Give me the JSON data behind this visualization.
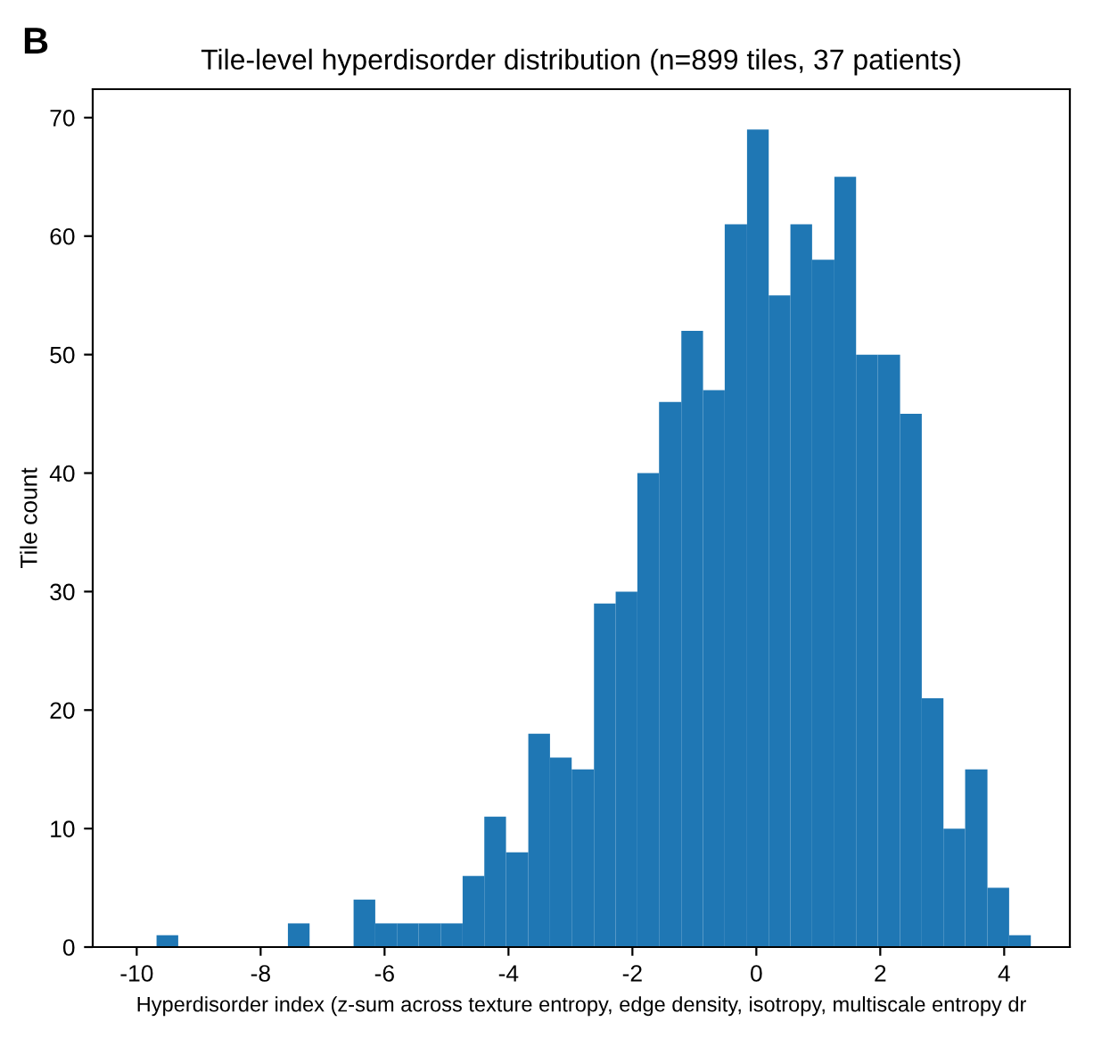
{
  "chart_data": {
    "type": "histogram",
    "title": "Tile-level hyperdisorder distribution (n=899 tiles, 37 patients)",
    "xlabel": "Hyperdisorder index (z-sum across texture entropy, edge density, isotropy, multiscale entropy dr",
    "ylabel": "Tile count",
    "annotations": [
      "B"
    ],
    "bins": [
      -9.68,
      -9.33,
      -7.56,
      -7.21,
      -6.5,
      -6.15,
      -5.8,
      -5.45,
      -5.09,
      -4.74,
      -4.39,
      -4.04,
      -3.68,
      -3.33,
      -2.98,
      -2.62,
      -2.27,
      -1.92,
      -1.57,
      -1.21,
      -0.86,
      -0.51,
      -0.15,
      0.2,
      0.55,
      0.9,
      1.26,
      1.61,
      1.96,
      2.32,
      2.67,
      3.02,
      3.37,
      3.73,
      4.08,
      4.43
    ],
    "values": [
      1,
      0,
      2,
      0,
      4,
      2,
      2,
      2,
      2,
      6,
      11,
      8,
      18,
      16,
      15,
      29,
      30,
      40,
      46,
      52,
      47,
      61,
      69,
      55,
      61,
      58,
      65,
      50,
      50,
      45,
      21,
      10,
      15,
      5,
      1
    ],
    "color": "#1f77b4",
    "xlim": [
      -10.71,
      5.06
    ],
    "ylim": [
      0,
      72.4
    ],
    "xticks": [
      -10,
      -8,
      -6,
      -4,
      -2,
      0,
      2,
      4
    ],
    "yticks": [
      0,
      10,
      20,
      30,
      40,
      50,
      60,
      70
    ],
    "grid": false,
    "legend": false
  }
}
